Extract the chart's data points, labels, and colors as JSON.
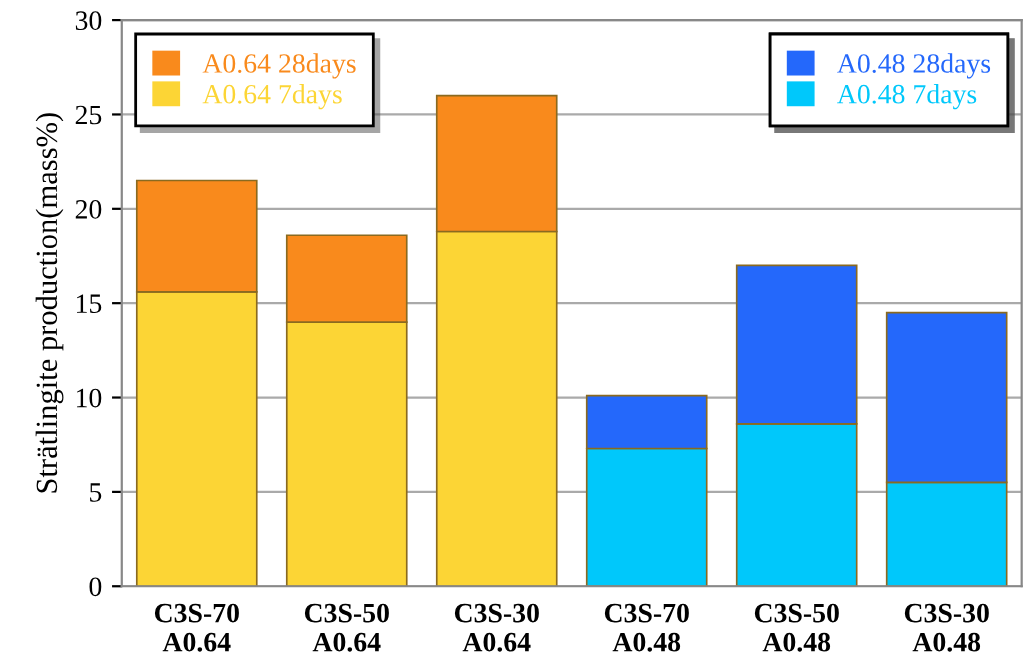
{
  "chart_data": {
    "type": "bar",
    "stacked": true,
    "ylabel": "Strätlingite production(mass%)",
    "categories": [
      "C3S-70\nA0.64",
      "C3S-50\nA0.64",
      "C3S-30\nA0.64",
      "C3S-70\nA0.48",
      "C3S-50\nA0.48",
      "C3S-30\nA0.48"
    ],
    "series": [
      {
        "name": "A0.64 7days",
        "color": "#fcd535",
        "values": [
          15.6,
          14.0,
          18.8,
          null,
          null,
          null
        ]
      },
      {
        "name": "A0.64 28days",
        "color": "#f98a1c",
        "values": [
          5.9,
          4.6,
          7.2,
          null,
          null,
          null
        ]
      },
      {
        "name": "A0.48 7days",
        "color": "#00c8fb",
        "values": [
          null,
          null,
          null,
          7.3,
          8.6,
          5.5
        ]
      },
      {
        "name": "A0.48 28days",
        "color": "#2468fb",
        "values": [
          null,
          null,
          null,
          2.8,
          8.4,
          9.0
        ]
      }
    ],
    "ylim": [
      0,
      30
    ],
    "yticks": [
      0,
      5,
      10,
      15,
      20,
      25,
      30
    ],
    "grid": "y",
    "legend": "top"
  }
}
